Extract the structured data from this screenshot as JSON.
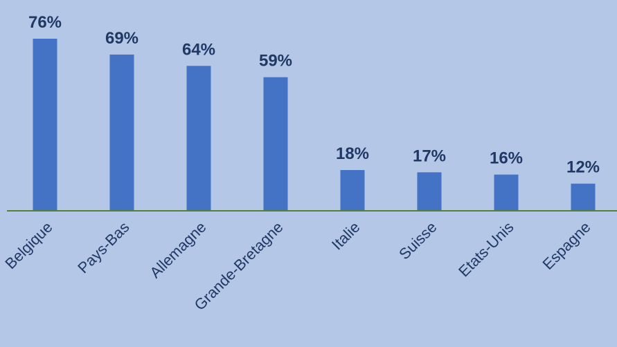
{
  "colors": {
    "background": "#B4C7E7",
    "bar": "#4472C4",
    "baseline": "#548235",
    "label_text": "#1F3864"
  },
  "chart_data": {
    "type": "bar",
    "title": "",
    "xlabel": "",
    "ylabel": "",
    "categories": [
      "Belgique",
      "Pays-Bas",
      "Allemagne",
      "Grande-Bretagne",
      "Italie",
      "Suisse",
      "Etats-Unis",
      "Espagne"
    ],
    "values": [
      76,
      69,
      64,
      59,
      18,
      17,
      16,
      12
    ],
    "value_labels": [
      "76%",
      "69%",
      "64%",
      "59%",
      "18%",
      "17%",
      "16%",
      "12%"
    ],
    "unit": "%",
    "ylim": [
      0,
      76
    ],
    "grid": false,
    "legend": "none",
    "x_tick_rotation": "-45"
  }
}
